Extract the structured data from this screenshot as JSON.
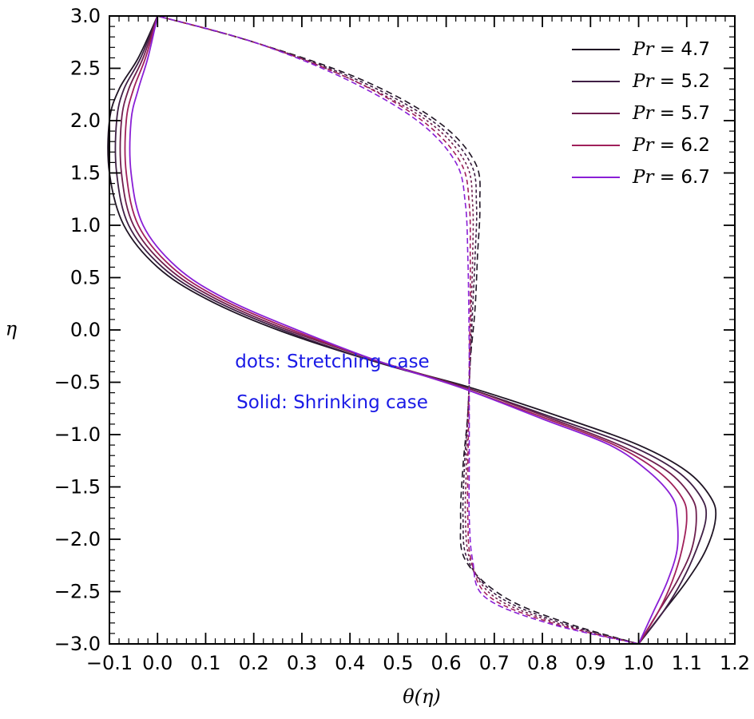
{
  "chart_data": {
    "type": "line",
    "xlabel": "θ(η)",
    "ylabel": "η",
    "xlim": [
      -0.1,
      1.2
    ],
    "ylim": [
      -3.0,
      3.0
    ],
    "x_ticks": [
      "−0.1",
      "0.0",
      "0.1",
      "0.2",
      "0.3",
      "0.4",
      "0.5",
      "0.6",
      "0.7",
      "0.8",
      "0.9",
      "1.0",
      "1.1",
      "1.2"
    ],
    "y_ticks": [
      "−3.0",
      "−2.5",
      "−2.0",
      "−1.5",
      "−1.0",
      "−0.5",
      "0.0",
      "0.5",
      "1.0",
      "1.5",
      "2.0",
      "2.5",
      "3.0"
    ],
    "legend_position": "top-right",
    "legend_label_prefix": "Pr = ",
    "annotations": [
      "dots: Stretching case",
      "Solid: Shrinking case"
    ],
    "series": [
      {
        "name": "4.7",
        "color": "#1f1424",
        "shrinking": [
          [
            1.0,
            -3.0
          ],
          [
            1.05,
            -2.7
          ],
          [
            1.1,
            -2.4
          ],
          [
            1.14,
            -2.1
          ],
          [
            1.16,
            -1.8
          ],
          [
            1.15,
            -1.6
          ],
          [
            1.1,
            -1.35
          ],
          [
            1.0,
            -1.1
          ],
          [
            0.85,
            -0.85
          ],
          [
            0.65,
            -0.55
          ],
          [
            0.45,
            -0.3
          ],
          [
            0.25,
            0.0
          ],
          [
            0.1,
            0.3
          ],
          [
            0.0,
            0.6
          ],
          [
            -0.07,
            1.0
          ],
          [
            -0.1,
            1.5
          ],
          [
            -0.1,
            2.0
          ],
          [
            -0.08,
            2.3
          ],
          [
            -0.04,
            2.6
          ],
          [
            0.0,
            3.0
          ]
        ],
        "stretching": [
          [
            1.0,
            -3.0
          ],
          [
            0.85,
            -2.8
          ],
          [
            0.72,
            -2.55
          ],
          [
            0.64,
            -2.2
          ],
          [
            0.63,
            -1.8
          ],
          [
            0.635,
            -1.3
          ],
          [
            0.645,
            -0.8
          ],
          [
            0.65,
            -0.3
          ],
          [
            0.66,
            0.2
          ],
          [
            0.665,
            0.7
          ],
          [
            0.67,
            1.2
          ],
          [
            0.66,
            1.6
          ],
          [
            0.58,
            2.0
          ],
          [
            0.42,
            2.4
          ],
          [
            0.2,
            2.75
          ],
          [
            0.0,
            3.0
          ]
        ]
      },
      {
        "name": "5.2",
        "color": "#3f1f45",
        "shrinking": [
          [
            1.0,
            -3.0
          ],
          [
            1.05,
            -2.7
          ],
          [
            1.09,
            -2.4
          ],
          [
            1.12,
            -2.1
          ],
          [
            1.14,
            -1.8
          ],
          [
            1.13,
            -1.6
          ],
          [
            1.08,
            -1.35
          ],
          [
            0.98,
            -1.1
          ],
          [
            0.83,
            -0.85
          ],
          [
            0.64,
            -0.55
          ],
          [
            0.45,
            -0.3
          ],
          [
            0.26,
            0.0
          ],
          [
            0.11,
            0.3
          ],
          [
            0.01,
            0.6
          ],
          [
            -0.06,
            1.0
          ],
          [
            -0.085,
            1.5
          ],
          [
            -0.085,
            2.0
          ],
          [
            -0.07,
            2.3
          ],
          [
            -0.035,
            2.6
          ],
          [
            0.0,
            3.0
          ]
        ],
        "stretching": [
          [
            1.0,
            -3.0
          ],
          [
            0.84,
            -2.8
          ],
          [
            0.71,
            -2.55
          ],
          [
            0.645,
            -2.2
          ],
          [
            0.635,
            -1.8
          ],
          [
            0.638,
            -1.3
          ],
          [
            0.645,
            -0.8
          ],
          [
            0.65,
            -0.3
          ],
          [
            0.655,
            0.2
          ],
          [
            0.66,
            0.7
          ],
          [
            0.663,
            1.2
          ],
          [
            0.65,
            1.6
          ],
          [
            0.57,
            2.0
          ],
          [
            0.41,
            2.4
          ],
          [
            0.2,
            2.75
          ],
          [
            0.0,
            3.0
          ]
        ]
      },
      {
        "name": "5.7",
        "color": "#6e1f4e",
        "shrinking": [
          [
            1.0,
            -3.0
          ],
          [
            1.04,
            -2.7
          ],
          [
            1.08,
            -2.4
          ],
          [
            1.11,
            -2.1
          ],
          [
            1.12,
            -1.8
          ],
          [
            1.11,
            -1.6
          ],
          [
            1.06,
            -1.35
          ],
          [
            0.96,
            -1.1
          ],
          [
            0.82,
            -0.85
          ],
          [
            0.64,
            -0.55
          ],
          [
            0.46,
            -0.3
          ],
          [
            0.27,
            0.0
          ],
          [
            0.12,
            0.3
          ],
          [
            0.02,
            0.6
          ],
          [
            -0.05,
            1.0
          ],
          [
            -0.075,
            1.5
          ],
          [
            -0.075,
            2.0
          ],
          [
            -0.06,
            2.3
          ],
          [
            -0.03,
            2.6
          ],
          [
            0.0,
            3.0
          ]
        ],
        "stretching": [
          [
            1.0,
            -3.0
          ],
          [
            0.83,
            -2.8
          ],
          [
            0.7,
            -2.55
          ],
          [
            0.65,
            -2.2
          ],
          [
            0.64,
            -1.8
          ],
          [
            0.642,
            -1.3
          ],
          [
            0.645,
            -0.8
          ],
          [
            0.65,
            -0.3
          ],
          [
            0.652,
            0.2
          ],
          [
            0.655,
            0.7
          ],
          [
            0.655,
            1.2
          ],
          [
            0.64,
            1.6
          ],
          [
            0.56,
            2.0
          ],
          [
            0.4,
            2.4
          ],
          [
            0.2,
            2.75
          ],
          [
            0.0,
            3.0
          ]
        ]
      },
      {
        "name": "6.2",
        "color": "#a0205a",
        "shrinking": [
          [
            1.0,
            -3.0
          ],
          [
            1.04,
            -2.7
          ],
          [
            1.07,
            -2.4
          ],
          [
            1.09,
            -2.1
          ],
          [
            1.1,
            -1.8
          ],
          [
            1.09,
            -1.6
          ],
          [
            1.04,
            -1.35
          ],
          [
            0.95,
            -1.1
          ],
          [
            0.81,
            -0.85
          ],
          [
            0.63,
            -0.55
          ],
          [
            0.46,
            -0.3
          ],
          [
            0.28,
            0.0
          ],
          [
            0.13,
            0.3
          ],
          [
            0.03,
            0.6
          ],
          [
            -0.04,
            1.0
          ],
          [
            -0.065,
            1.5
          ],
          [
            -0.065,
            2.0
          ],
          [
            -0.05,
            2.3
          ],
          [
            -0.025,
            2.6
          ],
          [
            0.0,
            3.0
          ]
        ],
        "stretching": [
          [
            1.0,
            -3.0
          ],
          [
            0.82,
            -2.8
          ],
          [
            0.69,
            -2.55
          ],
          [
            0.652,
            -2.2
          ],
          [
            0.645,
            -1.8
          ],
          [
            0.645,
            -1.3
          ],
          [
            0.647,
            -0.8
          ],
          [
            0.648,
            -0.3
          ],
          [
            0.65,
            0.2
          ],
          [
            0.65,
            0.7
          ],
          [
            0.648,
            1.2
          ],
          [
            0.63,
            1.6
          ],
          [
            0.55,
            2.0
          ],
          [
            0.4,
            2.4
          ],
          [
            0.2,
            2.75
          ],
          [
            0.0,
            3.0
          ]
        ]
      },
      {
        "name": "6.7",
        "color": "#8a1fd6",
        "shrinking": [
          [
            1.0,
            -3.0
          ],
          [
            1.03,
            -2.7
          ],
          [
            1.06,
            -2.4
          ],
          [
            1.08,
            -2.1
          ],
          [
            1.08,
            -1.8
          ],
          [
            1.07,
            -1.6
          ],
          [
            1.02,
            -1.35
          ],
          [
            0.94,
            -1.1
          ],
          [
            0.8,
            -0.85
          ],
          [
            0.63,
            -0.55
          ],
          [
            0.46,
            -0.3
          ],
          [
            0.29,
            0.0
          ],
          [
            0.14,
            0.3
          ],
          [
            0.04,
            0.6
          ],
          [
            -0.03,
            1.0
          ],
          [
            -0.055,
            1.5
          ],
          [
            -0.055,
            2.0
          ],
          [
            -0.04,
            2.3
          ],
          [
            -0.02,
            2.6
          ],
          [
            0.0,
            3.0
          ]
        ],
        "stretching": [
          [
            1.0,
            -3.0
          ],
          [
            0.81,
            -2.8
          ],
          [
            0.68,
            -2.55
          ],
          [
            0.655,
            -2.2
          ],
          [
            0.648,
            -1.8
          ],
          [
            0.648,
            -1.3
          ],
          [
            0.648,
            -0.8
          ],
          [
            0.648,
            -0.3
          ],
          [
            0.647,
            0.2
          ],
          [
            0.645,
            0.7
          ],
          [
            0.64,
            1.2
          ],
          [
            0.62,
            1.6
          ],
          [
            0.54,
            2.0
          ],
          [
            0.39,
            2.4
          ],
          [
            0.2,
            2.75
          ],
          [
            0.0,
            3.0
          ]
        ]
      }
    ]
  }
}
